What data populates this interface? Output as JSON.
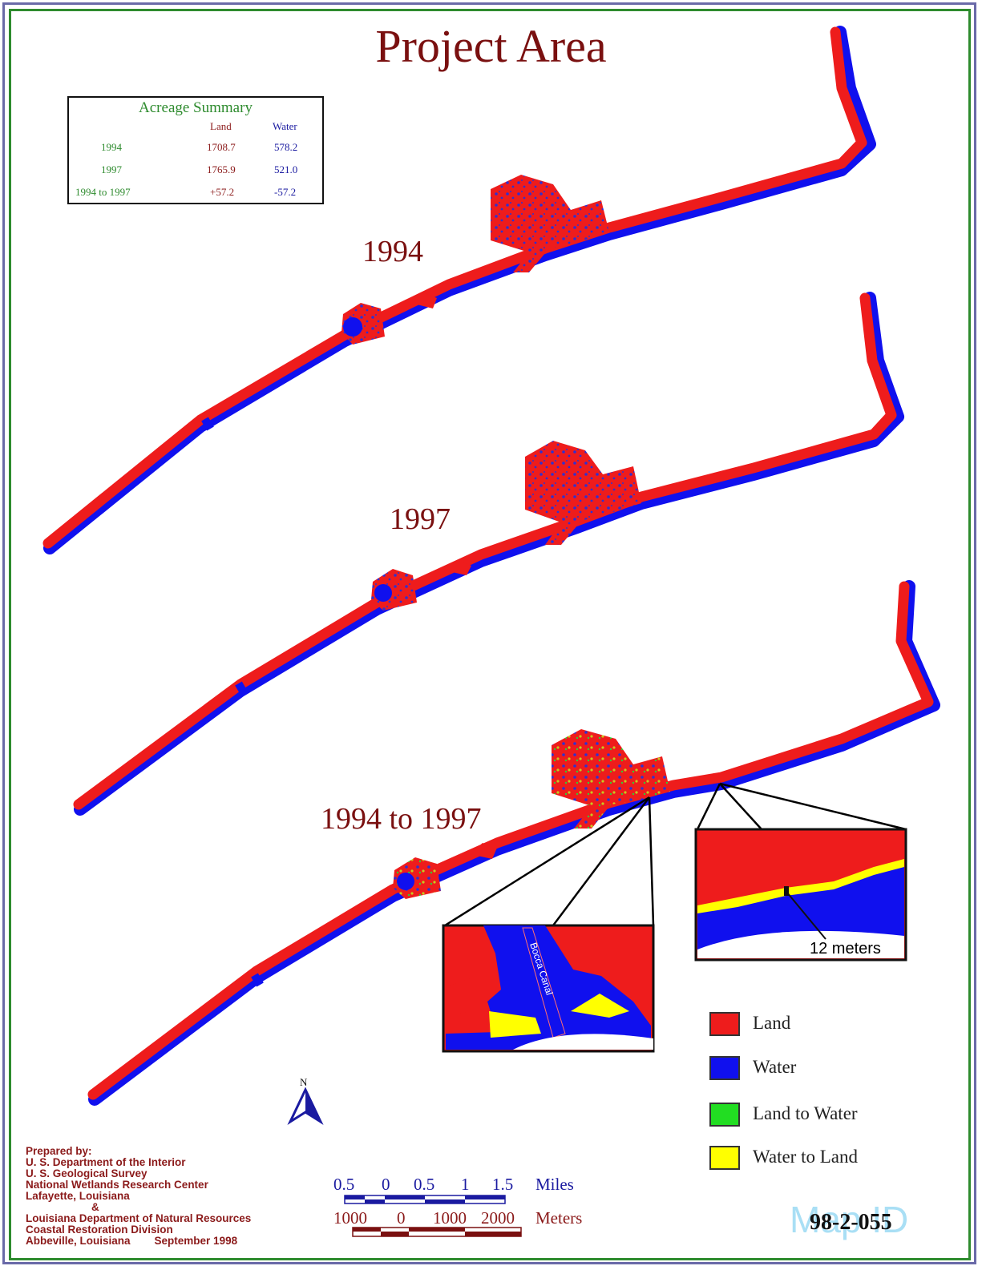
{
  "title": "Project Area",
  "labels": {
    "y1994": "1994",
    "y1997": "1997",
    "change": "1994 to 1997"
  },
  "acreage_summary": {
    "title": "Acreage Summary",
    "headers": {
      "land": "Land",
      "water": "Water"
    },
    "rows": [
      {
        "label": "1994",
        "land": "1708.7",
        "water": "578.2"
      },
      {
        "label": "1997",
        "land": "1765.9",
        "water": "521.0"
      },
      {
        "label": "1994 to 1997",
        "land": "+57.2",
        "water": "-57.2"
      }
    ]
  },
  "legend": [
    {
      "label": "Land",
      "color": "#ee1c1c"
    },
    {
      "label": "Water",
      "color": "#1010ee"
    },
    {
      "label": "Land to Water",
      "color": "#22dd22"
    },
    {
      "label": "Water to Land",
      "color": "#ffff00"
    }
  ],
  "north": "N",
  "inset_canal_label": "Bocca Canal",
  "inset_measure_label": "12 meters",
  "scale_miles": {
    "ticks": [
      "0.5",
      "0",
      "0.5",
      "1",
      "1.5"
    ],
    "unit": "Miles"
  },
  "scale_meters": {
    "ticks": [
      "1000",
      "0",
      "1000",
      "2000"
    ],
    "unit": "Meters"
  },
  "credits": [
    "Prepared by:",
    "U. S. Department of the Interior",
    "U. S. Geological Survey",
    "National Wetlands Research Center",
    "Lafayette, Louisiana",
    "&",
    "Louisiana Department of Natural Resources",
    "Coastal Restoration Division",
    "Abbeville, Louisiana        September 1998"
  ],
  "map_id": "98-2-055",
  "map_id_watermark": "Map ID"
}
